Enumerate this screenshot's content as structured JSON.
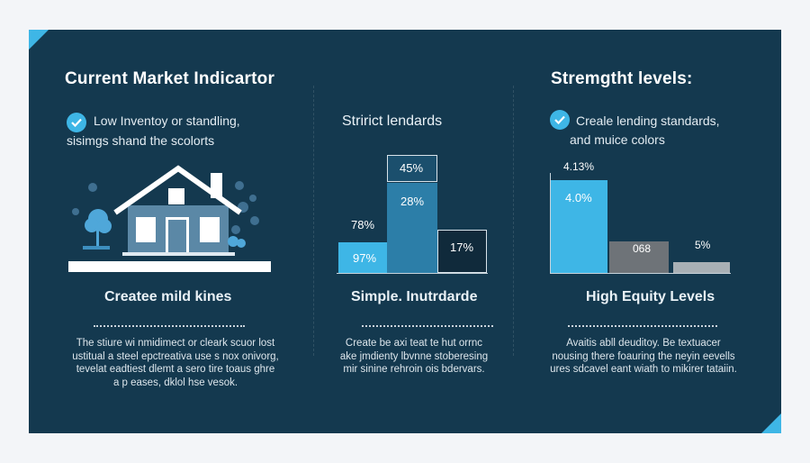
{
  "colors": {
    "panel": "#14394f",
    "accent": "#3eb6e6",
    "mid_blue": "#2c7ea8",
    "dark_bar": "#102a3b",
    "gray_bar": "#6e7378",
    "light_gray_bar": "#a9b0b5"
  },
  "col1": {
    "title": "Current Market Indicartor",
    "check_line1": "Low Inventoy or standling,",
    "check_line2": "sisimgs shand the scolorts",
    "icon": "house-with-trees-icon",
    "caption": "Createe mild kines",
    "desc": [
      "The stiure wi nmidimect or cleark scuor lost",
      "ustitual a steel epctreativa use s nox onivorg,",
      "tevelat eadtiest dlemt a sero tire toaus ghre",
      "a p eases, dklol hse vesok."
    ]
  },
  "col2": {
    "title": "Stririct lendards",
    "chart": {
      "bar1_label": "97%",
      "bar1_top_label": "78%",
      "bar2_bottom_label": "28%",
      "bar2_top_label": "45%",
      "bar3_label": "17%"
    },
    "caption": "Simple. Inutrdarde",
    "desc": [
      "Create be axi teat te hut orrnc",
      "ake jmdienty lbvnne stoberesing",
      "mir sinine rehroin ois bdervars."
    ]
  },
  "col3": {
    "title": "Stremgtht levels:",
    "check_line1": "Creale lending standards,",
    "check_line2": "and muice colors",
    "chart": {
      "top_label": "4.13%",
      "bar1_label": "4.0%",
      "bar2_label": "068",
      "bar3_label": "5%"
    },
    "caption": "High Equity Levels",
    "desc": [
      "Avaitis abll deuditoy. Be textuacer",
      "nousing there foauring the neyin eevells",
      "ures sdcavel eant wiath to mikirer tataiin."
    ]
  }
}
